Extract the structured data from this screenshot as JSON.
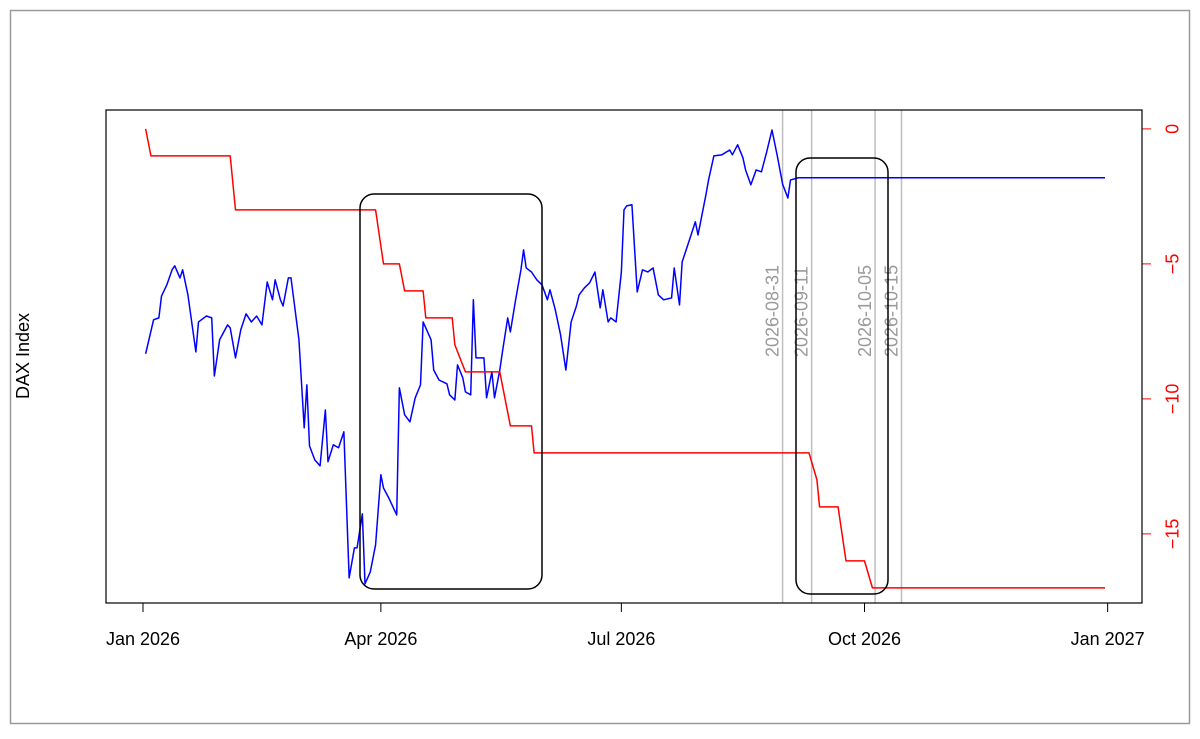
{
  "chart_data": {
    "type": "line",
    "ylabel": "DAX Index",
    "xlim": [
      "2025-12-18",
      "2027-01-14"
    ],
    "xticks": [
      {
        "value": "2026-01-01",
        "label": "Jan 2026"
      },
      {
        "value": "2026-04-01",
        "label": "Apr 2026"
      },
      {
        "value": "2026-07-01",
        "label": "Jul 2026"
      },
      {
        "value": "2026-10-01",
        "label": "Oct 2026"
      },
      {
        "value": "2027-01-01",
        "label": "Jan 2027"
      }
    ],
    "ylim": [
      -17.56,
      0.7
    ],
    "yticks": [
      0,
      {
        "value": -5,
        "label": "−5"
      },
      {
        "value": -10,
        "label": "−10"
      },
      {
        "value": -15,
        "label": "−15"
      }
    ],
    "yaxis_position": "right",
    "ytick_color": "#ff0000",
    "vlines": [
      "2026-08-31",
      "2026-09-11",
      "2026-10-05",
      "2026-10-15"
    ],
    "vline_color": "#bebebe",
    "series": [
      {
        "color": "#0000ff",
        "x": [
          "2026-01-02",
          "2026-01-05",
          "2026-01-07",
          "2026-01-08",
          "2026-01-10",
          "2026-01-12",
          "2026-01-13",
          "2026-01-15",
          "2026-01-16",
          "2026-01-18",
          "2026-01-21",
          "2026-01-22",
          "2026-01-25",
          "2026-01-27",
          "2026-01-28",
          "2026-01-30",
          "2026-02-02",
          "2026-02-03",
          "2026-02-05",
          "2026-02-07",
          "2026-02-09",
          "2026-02-11",
          "2026-02-13",
          "2026-02-15",
          "2026-02-17",
          "2026-02-19",
          "2026-02-20",
          "2026-02-22",
          "2026-02-23",
          "2026-02-25",
          "2026-02-26",
          "2026-03-01",
          "2026-03-03",
          "2026-03-04",
          "2026-03-05",
          "2026-03-07",
          "2026-03-09",
          "2026-03-11",
          "2026-03-12",
          "2026-03-14",
          "2026-03-16",
          "2026-03-18",
          "2026-03-20",
          "2026-03-22",
          "2026-03-23",
          "2026-03-25",
          "2026-03-26",
          "2026-03-28",
          "2026-03-30",
          "2026-04-01",
          "2026-04-02",
          "2026-04-04",
          "2026-04-07",
          "2026-04-08",
          "2026-04-10",
          "2026-04-12",
          "2026-04-14",
          "2026-04-16",
          "2026-04-17",
          "2026-04-20",
          "2026-04-21",
          "2026-04-23",
          "2026-04-26",
          "2026-04-27",
          "2026-04-29",
          "2026-04-30",
          "2026-05-02",
          "2026-05-03",
          "2026-05-05",
          "2026-05-06",
          "2026-05-07",
          "2026-05-10",
          "2026-05-11",
          "2026-05-13",
          "2026-05-14",
          "2026-05-16",
          "2026-05-17",
          "2026-05-19",
          "2026-05-20",
          "2026-05-22",
          "2026-05-24",
          "2026-05-25",
          "2026-05-26",
          "2026-05-28",
          "2026-05-30",
          "2026-06-01",
          "2026-06-03",
          "2026-06-04",
          "2026-06-06",
          "2026-06-08",
          "2026-06-10",
          "2026-06-12",
          "2026-06-14",
          "2026-06-15",
          "2026-06-17",
          "2026-06-19",
          "2026-06-21",
          "2026-06-23",
          "2026-06-24",
          "2026-06-26",
          "2026-06-27",
          "2026-06-29",
          "2026-07-01",
          "2026-07-02",
          "2026-07-03",
          "2026-07-05",
          "2026-07-07",
          "2026-07-09",
          "2026-07-11",
          "2026-07-13",
          "2026-07-15",
          "2026-07-17",
          "2026-07-20",
          "2026-07-21",
          "2026-07-23",
          "2026-07-24",
          "2026-07-27",
          "2026-07-29",
          "2026-07-30",
          "2026-08-02",
          "2026-08-03",
          "2026-08-05",
          "2026-08-08",
          "2026-08-11",
          "2026-08-12",
          "2026-08-14",
          "2026-08-16",
          "2026-08-17",
          "2026-08-19",
          "2026-08-21",
          "2026-08-23",
          "2026-08-25",
          "2026-08-27",
          "2026-08-29",
          "2026-08-31",
          "2026-09-02",
          "2026-09-03",
          "2026-09-06",
          "2026-12-31"
        ],
        "values": [
          -8.33,
          -7.07,
          -7.0,
          -6.19,
          -5.78,
          -5.22,
          -5.07,
          -5.52,
          -5.22,
          -6.15,
          -8.26,
          -7.15,
          -6.93,
          -7.0,
          -9.15,
          -7.81,
          -7.26,
          -7.37,
          -8.48,
          -7.44,
          -6.85,
          -7.15,
          -6.93,
          -7.26,
          -5.67,
          -6.33,
          -5.59,
          -6.33,
          -6.56,
          -5.52,
          -5.52,
          -7.81,
          -11.07,
          -9.48,
          -11.74,
          -12.26,
          -12.48,
          -10.41,
          -12.33,
          -11.7,
          -11.81,
          -11.22,
          -16.63,
          -15.52,
          -15.52,
          -14.26,
          -16.85,
          -16.41,
          -15.41,
          -12.81,
          -13.3,
          -13.67,
          -14.3,
          -9.59,
          -10.59,
          -10.85,
          -9.96,
          -9.48,
          -7.15,
          -7.81,
          -8.93,
          -9.3,
          -9.44,
          -9.85,
          -10.04,
          -8.74,
          -9.22,
          -9.74,
          -9.85,
          -6.33,
          -8.48,
          -8.48,
          -9.96,
          -9.0,
          -9.96,
          -8.93,
          -8.26,
          -7.0,
          -7.52,
          -6.33,
          -5.22,
          -4.48,
          -5.15,
          -5.3,
          -5.59,
          -5.78,
          -6.33,
          -5.96,
          -6.7,
          -7.63,
          -8.93,
          -7.15,
          -6.56,
          -6.15,
          -5.89,
          -5.7,
          -5.3,
          -6.63,
          -5.96,
          -7.15,
          -7.0,
          -7.15,
          -5.3,
          -3.0,
          -2.85,
          -2.81,
          -6.04,
          -5.22,
          -5.3,
          -5.15,
          -6.15,
          -6.33,
          -6.26,
          -5.15,
          -6.52,
          -4.93,
          -4.04,
          -3.44,
          -3.93,
          -2.44,
          -1.89,
          -1.0,
          -0.96,
          -0.78,
          -0.96,
          -0.59,
          -1.07,
          -1.52,
          -2.07,
          -1.52,
          -1.59,
          -0.85,
          -0.04,
          -1.0,
          -2.04,
          -2.56,
          -1.89,
          -1.81,
          -1.81
        ]
      },
      {
        "color": "#ff0000",
        "x": [
          "2026-01-02",
          "2026-01-04",
          "2026-02-03",
          "2026-02-05",
          "2026-03-30",
          "2026-04-02",
          "2026-04-08",
          "2026-04-10",
          "2026-04-17",
          "2026-04-18",
          "2026-04-28",
          "2026-04-29",
          "2026-05-03",
          "2026-05-16",
          "2026-05-20",
          "2026-05-28",
          "2026-05-29",
          "2026-09-10",
          "2026-09-13",
          "2026-09-14",
          "2026-09-21",
          "2026-09-24",
          "2026-10-01",
          "2026-10-04",
          "2026-12-31"
        ],
        "values": [
          0,
          -1,
          -1,
          -3,
          -3,
          -5,
          -5,
          -6,
          -6,
          -7,
          -7,
          -8,
          -9,
          -9,
          -11,
          -11,
          -12,
          -12,
          -13,
          -14,
          -14,
          -16,
          -16,
          -17,
          -17
        ]
      }
    ]
  }
}
